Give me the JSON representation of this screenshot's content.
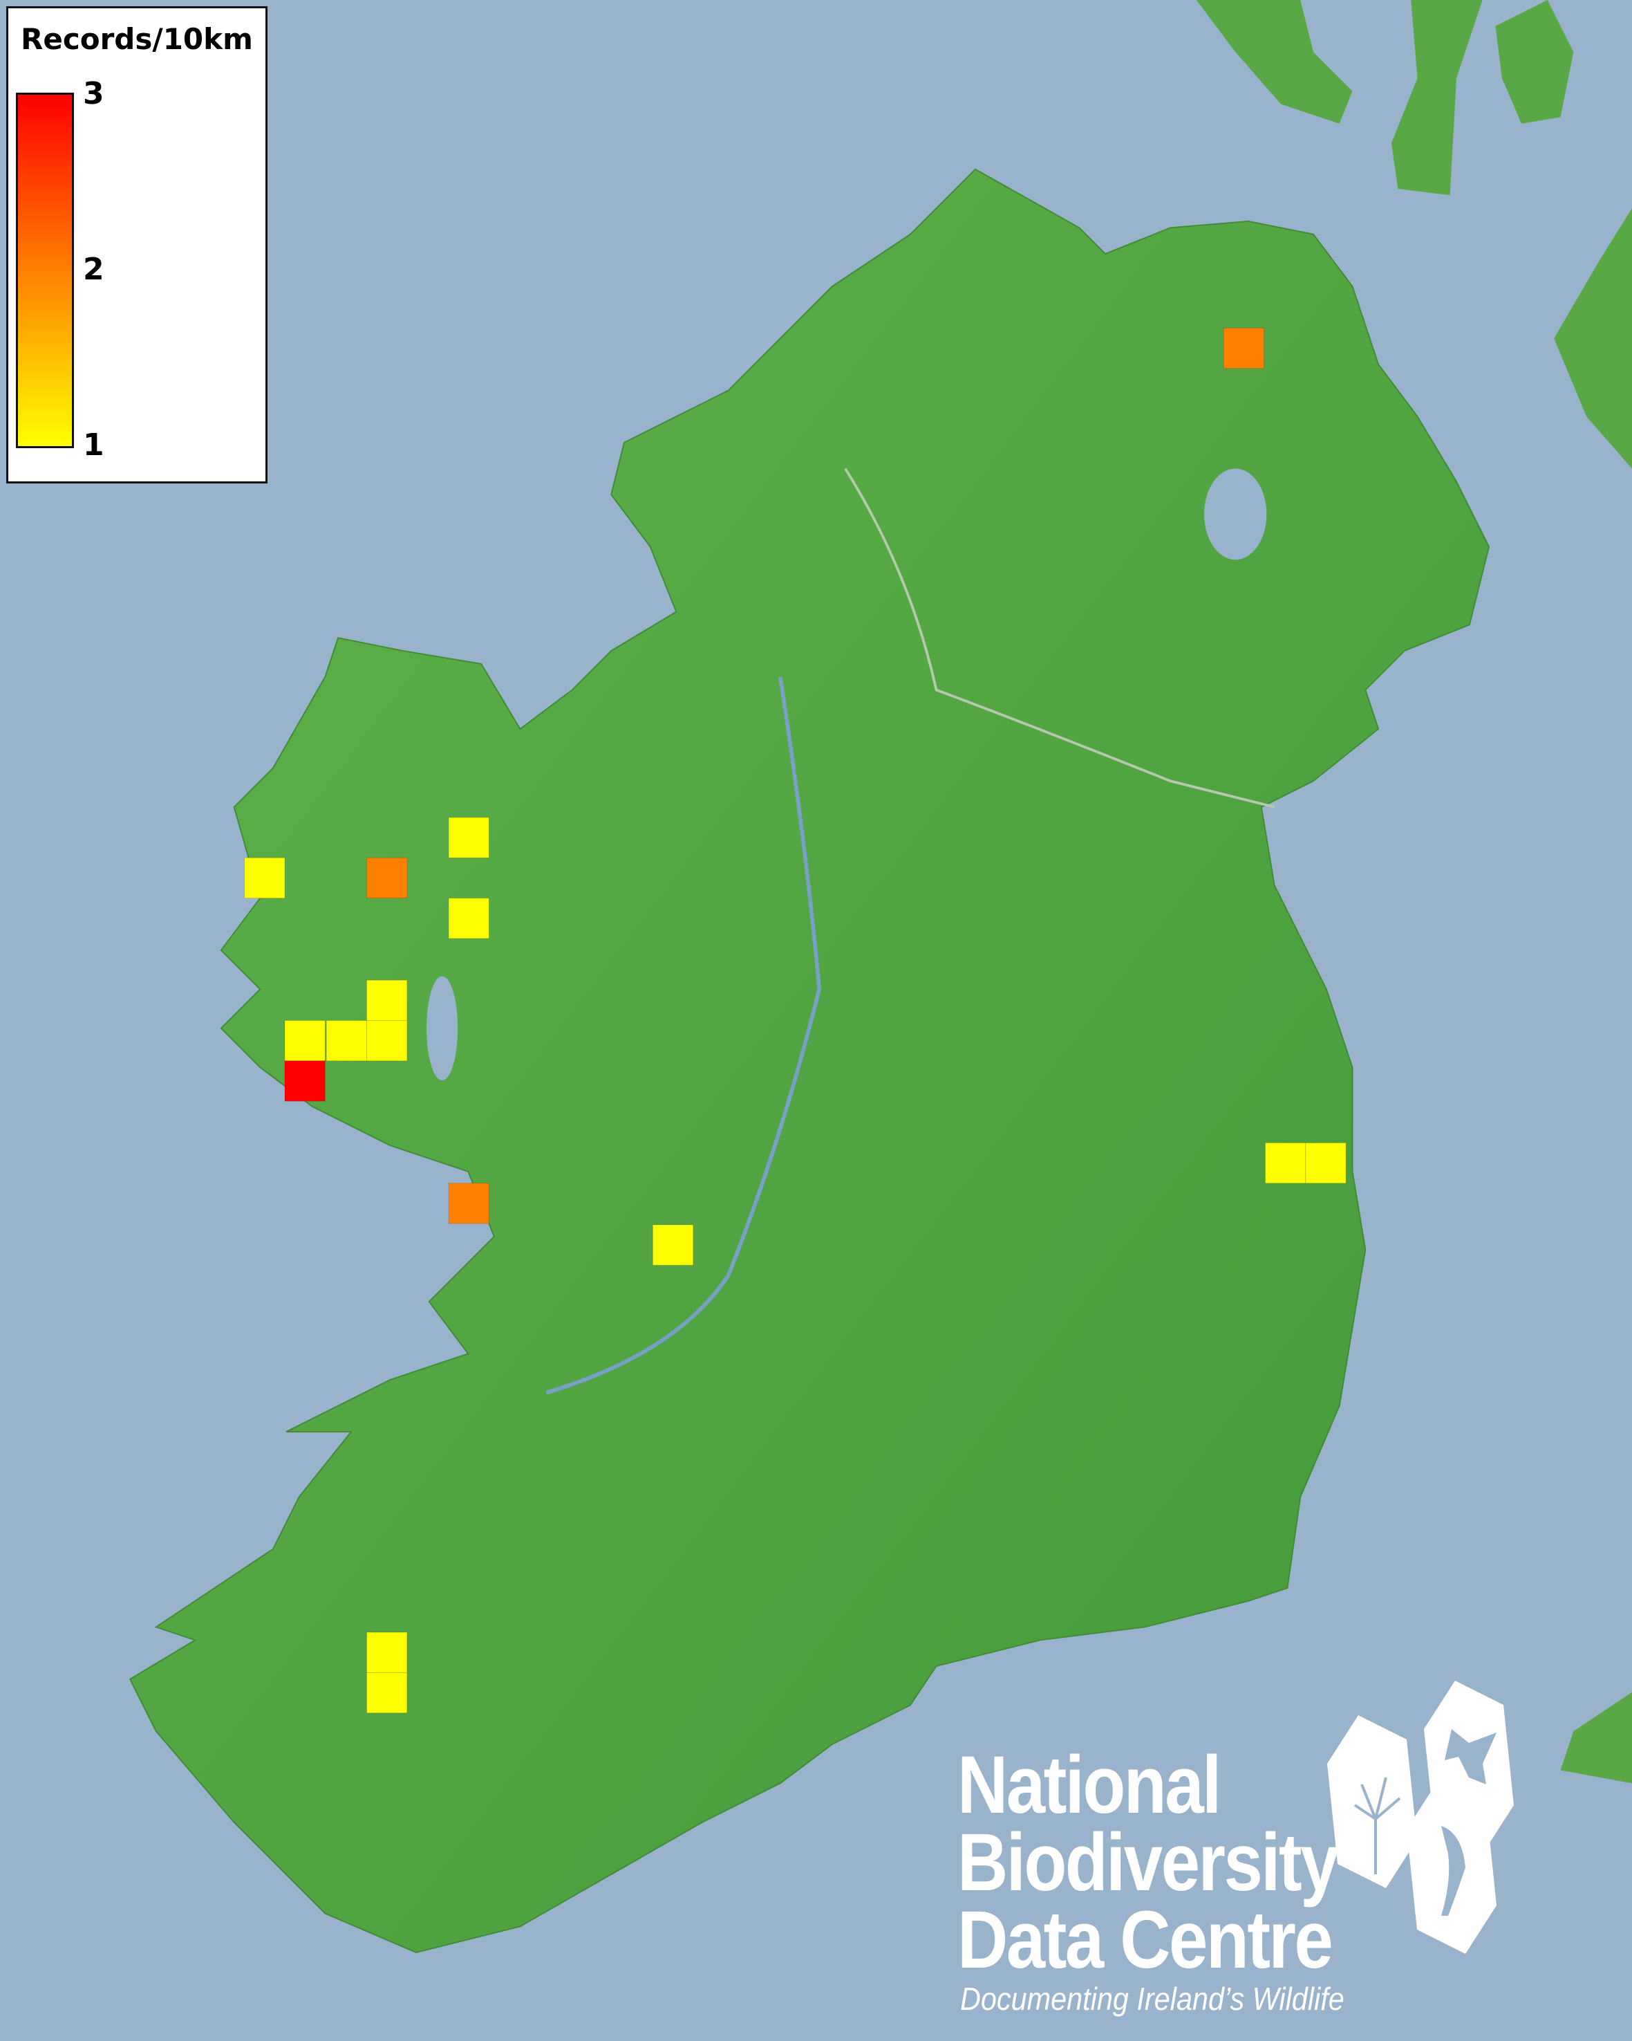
{
  "legend": {
    "title": "Records/10km",
    "ticks": [
      "3",
      "2",
      "1"
    ],
    "scale_min": 1,
    "scale_max": 3,
    "colors": {
      "low": "#ffff00",
      "mid": "#ff8000",
      "high": "#ff0000"
    }
  },
  "records": [
    {
      "value": 2
    },
    {
      "value": 1
    },
    {
      "value": 1
    },
    {
      "value": 2
    },
    {
      "value": 1
    },
    {
      "value": 1
    },
    {
      "value": 1
    },
    {
      "value": 1
    },
    {
      "value": 1
    },
    {
      "value": 3
    },
    {
      "value": 1
    },
    {
      "value": 1
    },
    {
      "value": 2
    },
    {
      "value": 1
    },
    {
      "value": 1
    },
    {
      "value": 1
    }
  ],
  "map_colors": {
    "sea": "#9ab3cc",
    "land": "#4fa33f"
  },
  "logo": {
    "line1": "National",
    "line2": "Biodiversity",
    "line3": "Data Centre",
    "tagline": "Documenting Ireland’s Wildlife"
  }
}
